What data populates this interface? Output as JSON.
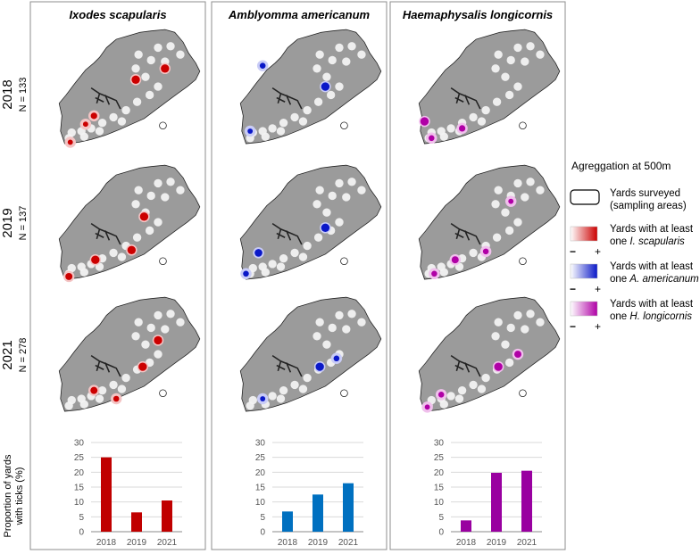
{
  "species": [
    {
      "name": "Ixodes scapularis",
      "color": "#cc0000",
      "pale": "#f3c4c4"
    },
    {
      "name": "Amblyomma americanum",
      "color": "#0a18c8",
      "pale": "#c9ccf6"
    },
    {
      "name": "Haemaphysalis longicornis",
      "color": "#b000a6",
      "pale": "#f0c0ec"
    }
  ],
  "years": [
    {
      "year": "2018",
      "n": "N = 133"
    },
    {
      "year": "2019",
      "n": "N = 137"
    },
    {
      "year": "2021",
      "n": "N = 278"
    }
  ],
  "legend": {
    "title": "Agreggation at 500m",
    "surveyed": "Yards surveyed (sampling areas)",
    "items": [
      {
        "text": "Yards with at least one",
        "italic": "I. scapularis"
      },
      {
        "text": "Yards with at least one",
        "italic": "A. americanum"
      },
      {
        "text": "Yards with at least one",
        "italic": "H. longicornis"
      }
    ],
    "minus": "−",
    "plus": "+"
  },
  "chart_data": [
    {
      "type": "bar",
      "categories": [
        "2018",
        "2019",
        "2021"
      ],
      "values": [
        25,
        6.5,
        10.5
      ],
      "ylabel": "Proportion of yards with ticks (%)",
      "ylim": [
        0,
        30
      ],
      "yticks": [
        0,
        5,
        10,
        15,
        20,
        25,
        30
      ],
      "color": "#c00000",
      "grid": true
    },
    {
      "type": "bar",
      "categories": [
        "2018",
        "2019",
        "2021"
      ],
      "values": [
        6.8,
        12.5,
        16.3
      ],
      "ylim": [
        0,
        30
      ],
      "yticks": [
        0,
        5,
        10,
        15,
        20,
        25,
        30
      ],
      "color": "#0070c0",
      "grid": true
    },
    {
      "type": "bar",
      "categories": [
        "2018",
        "2019",
        "2021"
      ],
      "values": [
        3.8,
        19.8,
        20.5
      ],
      "ylim": [
        0,
        30
      ],
      "yticks": [
        0,
        5,
        10,
        15,
        20,
        25,
        30
      ],
      "color": "#9900a0",
      "grid": true
    }
  ]
}
